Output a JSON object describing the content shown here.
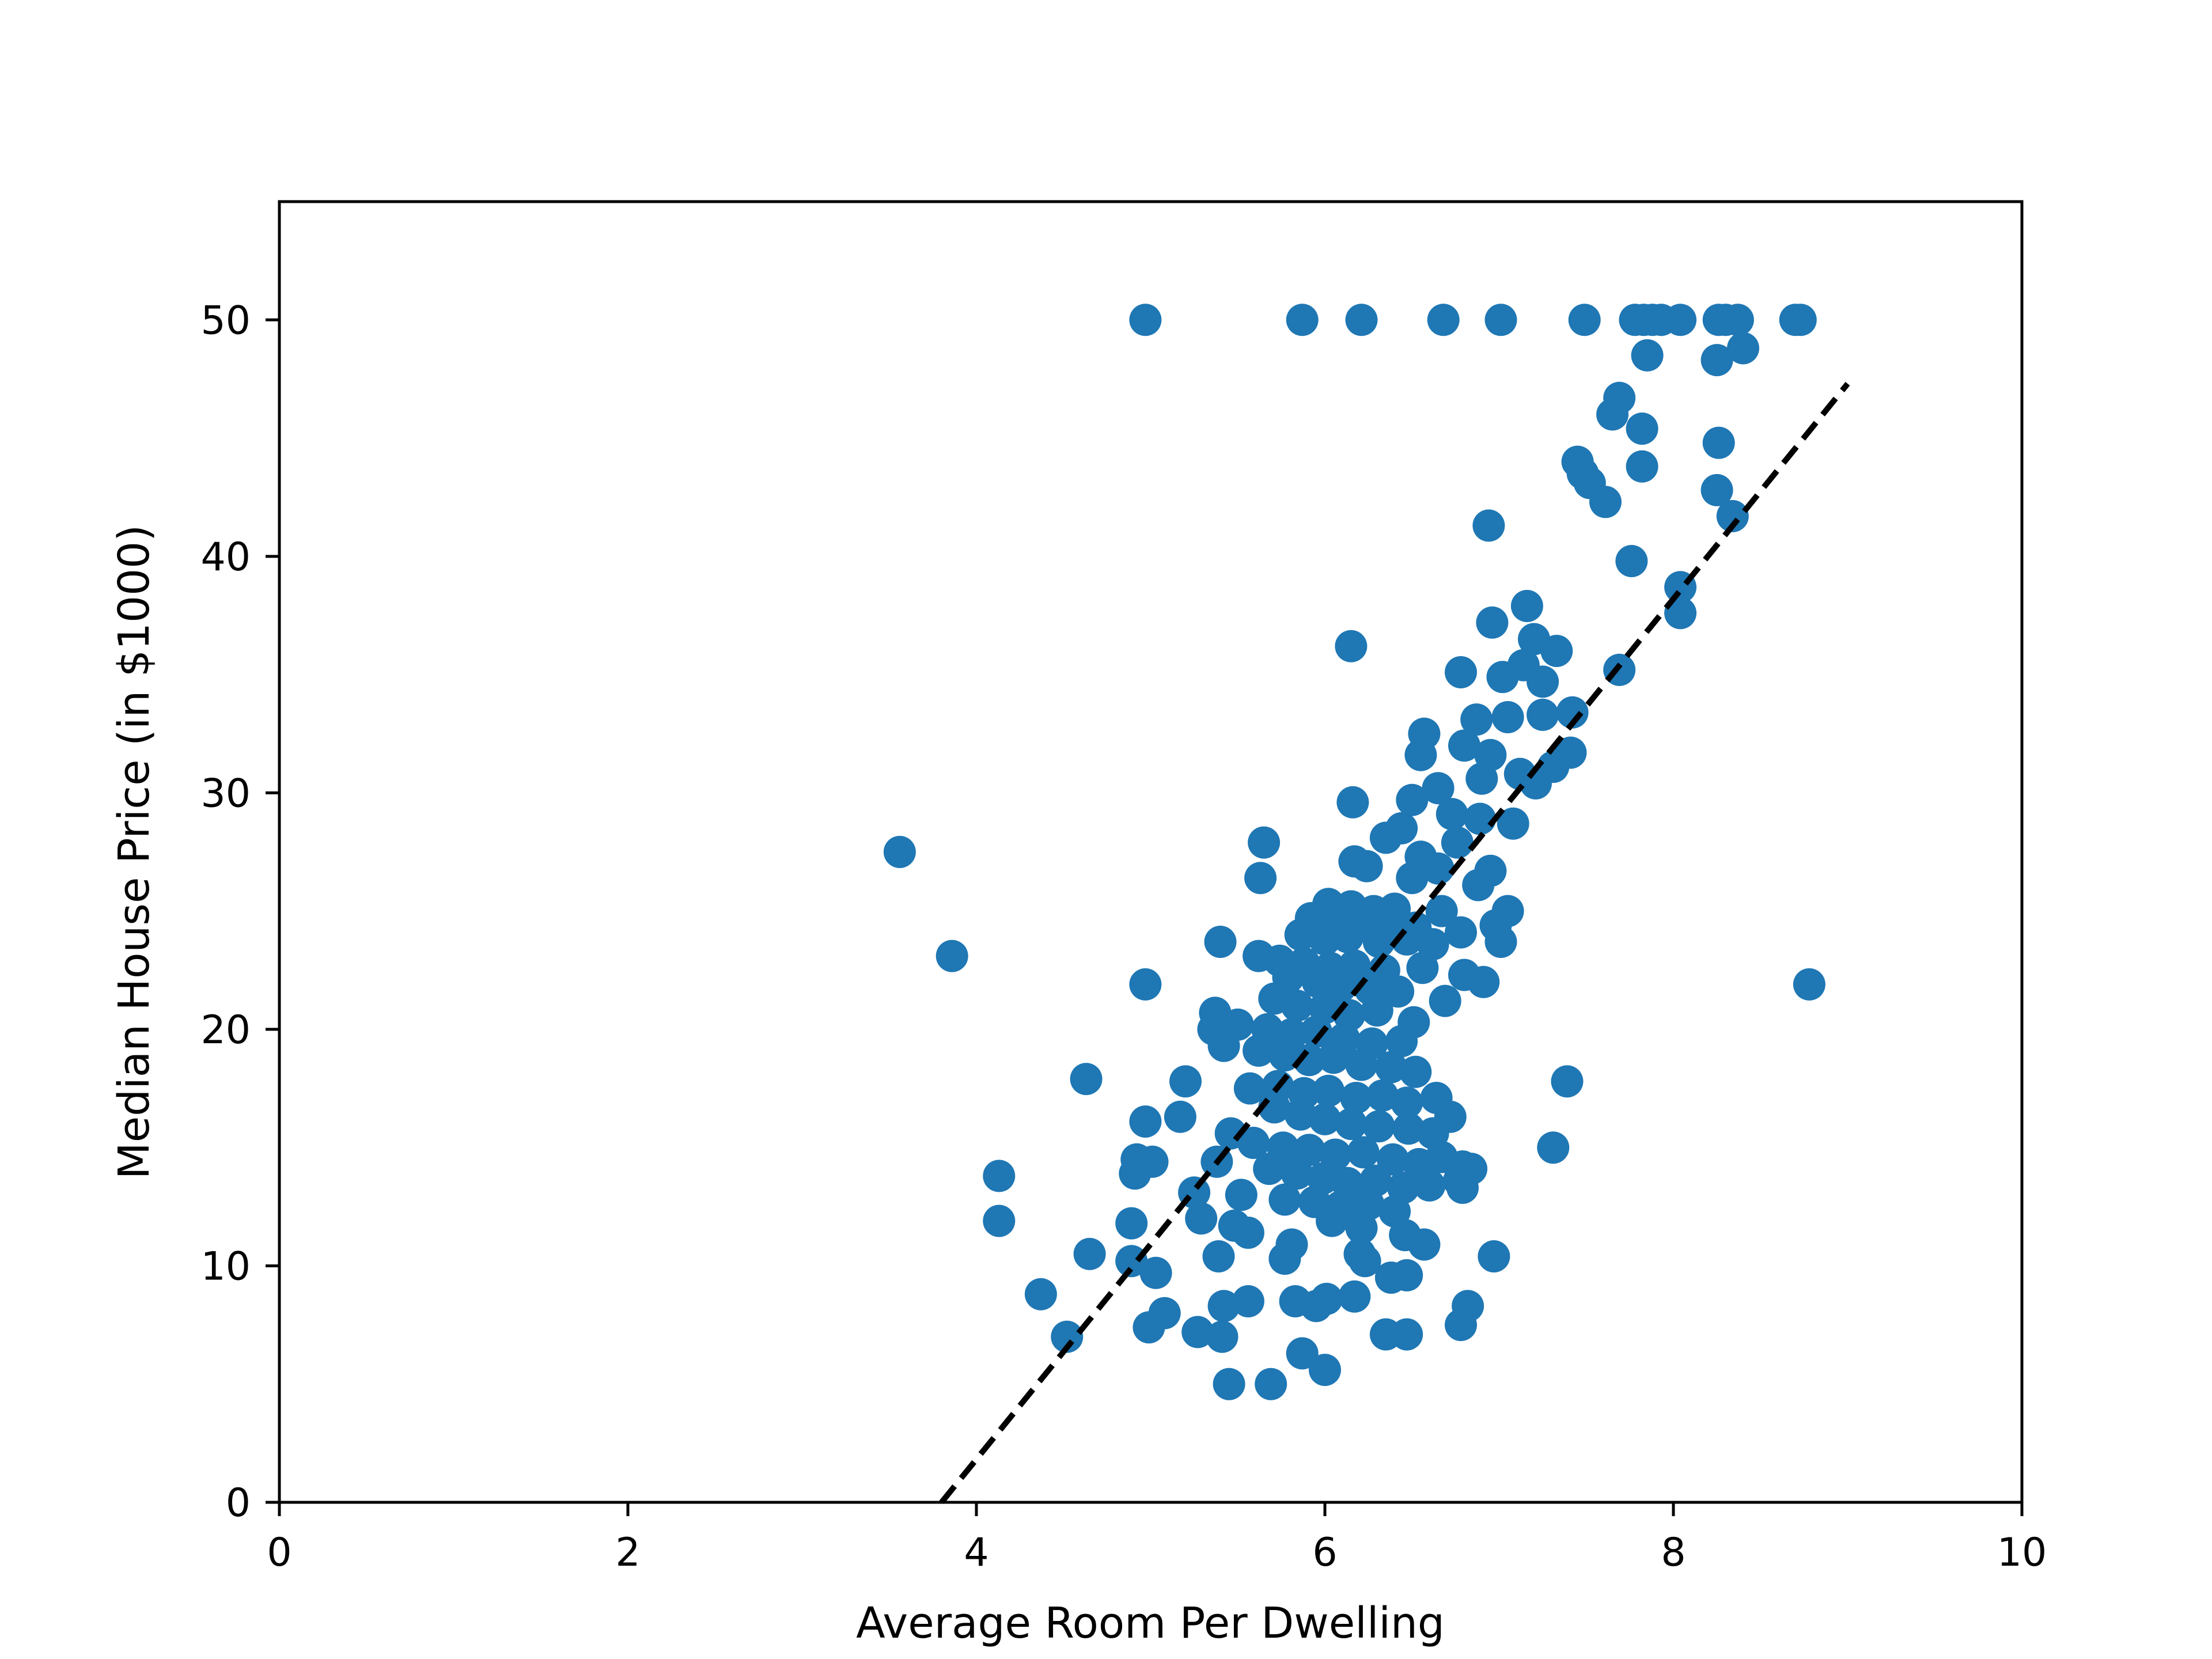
{
  "chart_data": {
    "type": "scatter",
    "title": "",
    "xlabel": "Average Room Per Dwelling",
    "ylabel": "Median House Price (in $1000)",
    "xlim": [
      0,
      10
    ],
    "ylim": [
      0,
      55
    ],
    "xticks": [
      0,
      2,
      4,
      6,
      8,
      10
    ],
    "yticks": [
      0,
      10,
      20,
      30,
      40,
      50
    ],
    "grid": false,
    "legend": "none",
    "marker_color": "#1f77b4",
    "series": [
      {
        "points": [
          [
            4.97,
            50.0
          ],
          [
            5.87,
            50.0
          ],
          [
            6.21,
            50.0
          ],
          [
            6.68,
            50.0
          ],
          [
            7.01,
            50.0
          ],
          [
            7.49,
            50.0
          ],
          [
            7.78,
            50.0
          ],
          [
            7.83,
            50.0
          ],
          [
            7.88,
            50.0
          ],
          [
            7.93,
            50.0
          ],
          [
            8.04,
            50.0
          ],
          [
            8.26,
            50.0
          ],
          [
            8.3,
            50.0
          ],
          [
            8.37,
            50.0
          ],
          [
            8.7,
            50.0
          ],
          [
            8.73,
            50.0
          ],
          [
            7.85,
            48.5
          ],
          [
            8.25,
            48.3
          ],
          [
            8.4,
            48.8
          ],
          [
            7.69,
            46.7
          ],
          [
            7.65,
            46.0
          ],
          [
            7.82,
            45.4
          ],
          [
            8.26,
            44.8
          ],
          [
            7.45,
            44.0
          ],
          [
            7.48,
            43.5
          ],
          [
            7.52,
            43.1
          ],
          [
            7.61,
            42.3
          ],
          [
            7.82,
            43.8
          ],
          [
            8.25,
            42.8
          ],
          [
            8.34,
            41.7
          ],
          [
            6.94,
            41.3
          ],
          [
            7.76,
            39.8
          ],
          [
            8.04,
            38.7
          ],
          [
            8.04,
            37.6
          ],
          [
            7.16,
            37.9
          ],
          [
            6.96,
            37.2
          ],
          [
            7.2,
            36.5
          ],
          [
            6.15,
            36.2
          ],
          [
            7.33,
            36.0
          ],
          [
            7.14,
            35.4
          ],
          [
            6.78,
            35.1
          ],
          [
            7.02,
            34.9
          ],
          [
            7.25,
            34.7
          ],
          [
            7.69,
            35.2
          ],
          [
            7.42,
            33.4
          ],
          [
            7.25,
            33.3
          ],
          [
            7.05,
            33.2
          ],
          [
            6.87,
            33.1
          ],
          [
            6.57,
            32.5
          ],
          [
            6.8,
            32.0
          ],
          [
            6.95,
            31.6
          ],
          [
            7.41,
            31.7
          ],
          [
            6.55,
            31.6
          ],
          [
            7.31,
            31.1
          ],
          [
            7.12,
            30.8
          ],
          [
            6.9,
            30.6
          ],
          [
            6.65,
            30.2
          ],
          [
            7.21,
            30.4
          ],
          [
            6.5,
            29.7
          ],
          [
            6.73,
            29.1
          ],
          [
            6.89,
            28.9
          ],
          [
            7.08,
            28.7
          ],
          [
            6.44,
            28.5
          ],
          [
            6.35,
            28.1
          ],
          [
            6.16,
            29.6
          ],
          [
            6.76,
            27.9
          ],
          [
            6.55,
            27.3
          ],
          [
            6.65,
            26.8
          ],
          [
            6.95,
            26.7
          ],
          [
            6.17,
            27.1
          ],
          [
            6.24,
            26.9
          ],
          [
            6.5,
            26.4
          ],
          [
            6.88,
            26.1
          ],
          [
            5.65,
            27.9
          ],
          [
            5.63,
            26.4
          ],
          [
            3.56,
            27.5
          ],
          [
            3.86,
            23.1
          ],
          [
            6.02,
            25.3
          ],
          [
            6.15,
            25.2
          ],
          [
            6.28,
            25.0
          ],
          [
            6.4,
            25.1
          ],
          [
            6.67,
            25.0
          ],
          [
            7.05,
            25.0
          ],
          [
            5.92,
            24.7
          ],
          [
            6.07,
            24.6
          ],
          [
            6.2,
            24.4
          ],
          [
            6.36,
            24.2
          ],
          [
            6.52,
            24.3
          ],
          [
            6.78,
            24.1
          ],
          [
            6.98,
            24.4
          ],
          [
            5.86,
            24.0
          ],
          [
            6.0,
            23.8
          ],
          [
            6.13,
            23.9
          ],
          [
            6.31,
            23.7
          ],
          [
            6.47,
            23.8
          ],
          [
            6.62,
            23.6
          ],
          [
            7.01,
            23.7
          ],
          [
            5.4,
            23.7
          ],
          [
            5.62,
            23.1
          ],
          [
            5.74,
            22.9
          ],
          [
            5.88,
            22.8
          ],
          [
            6.03,
            22.6
          ],
          [
            6.17,
            22.7
          ],
          [
            6.34,
            22.5
          ],
          [
            6.56,
            22.6
          ],
          [
            6.8,
            22.3
          ],
          [
            6.91,
            22.0
          ],
          [
            4.97,
            21.9
          ],
          [
            8.78,
            21.9
          ],
          [
            5.79,
            22.2
          ],
          [
            5.96,
            22.0
          ],
          [
            6.09,
            21.8
          ],
          [
            6.26,
            21.7
          ],
          [
            6.42,
            21.6
          ],
          [
            6.69,
            21.2
          ],
          [
            5.71,
            21.3
          ],
          [
            5.84,
            21.0
          ],
          [
            6.0,
            20.9
          ],
          [
            6.14,
            20.6
          ],
          [
            6.3,
            20.8
          ],
          [
            6.51,
            20.3
          ],
          [
            5.37,
            20.7
          ],
          [
            5.5,
            20.2
          ],
          [
            5.67,
            20.0
          ],
          [
            5.81,
            19.8
          ],
          [
            5.95,
            19.9
          ],
          [
            6.11,
            19.6
          ],
          [
            6.27,
            19.4
          ],
          [
            6.44,
            19.5
          ],
          [
            5.36,
            20.0
          ],
          [
            5.42,
            19.3
          ],
          [
            5.62,
            19.1
          ],
          [
            5.77,
            18.9
          ],
          [
            5.91,
            18.7
          ],
          [
            6.05,
            18.8
          ],
          [
            6.21,
            18.5
          ],
          [
            6.38,
            18.4
          ],
          [
            6.52,
            18.2
          ],
          [
            4.63,
            17.9
          ],
          [
            5.2,
            17.8
          ],
          [
            5.57,
            17.5
          ],
          [
            5.73,
            17.6
          ],
          [
            5.88,
            17.3
          ],
          [
            6.02,
            17.4
          ],
          [
            6.18,
            17.1
          ],
          [
            6.33,
            17.2
          ],
          [
            6.47,
            16.9
          ],
          [
            6.64,
            17.1
          ],
          [
            7.39,
            17.8
          ],
          [
            4.97,
            16.1
          ],
          [
            5.17,
            16.3
          ],
          [
            5.71,
            16.7
          ],
          [
            5.86,
            16.4
          ],
          [
            6.0,
            16.2
          ],
          [
            6.15,
            16.0
          ],
          [
            6.31,
            15.9
          ],
          [
            6.48,
            15.8
          ],
          [
            6.62,
            15.6
          ],
          [
            6.72,
            16.3
          ],
          [
            5.46,
            15.6
          ],
          [
            5.59,
            15.2
          ],
          [
            5.76,
            15.0
          ],
          [
            5.91,
            14.9
          ],
          [
            6.06,
            14.7
          ],
          [
            6.22,
            14.8
          ],
          [
            6.39,
            14.5
          ],
          [
            6.54,
            14.3
          ],
          [
            6.67,
            14.6
          ],
          [
            6.79,
            14.2
          ],
          [
            7.31,
            15.0
          ],
          [
            4.92,
            14.5
          ],
          [
            5.01,
            14.4
          ],
          [
            5.38,
            14.4
          ],
          [
            5.68,
            14.1
          ],
          [
            5.84,
            13.9
          ],
          [
            5.99,
            13.7
          ],
          [
            6.13,
            13.5
          ],
          [
            6.29,
            13.6
          ],
          [
            6.45,
            13.3
          ],
          [
            6.6,
            13.4
          ],
          [
            6.77,
            13.6
          ],
          [
            6.84,
            14.1
          ],
          [
            4.13,
            13.8
          ],
          [
            4.91,
            13.9
          ],
          [
            5.25,
            13.1
          ],
          [
            5.52,
            13.0
          ],
          [
            5.77,
            12.8
          ],
          [
            5.94,
            12.7
          ],
          [
            6.09,
            12.5
          ],
          [
            6.25,
            12.6
          ],
          [
            6.4,
            12.3
          ],
          [
            6.79,
            13.3
          ],
          [
            4.13,
            11.9
          ],
          [
            4.89,
            11.8
          ],
          [
            5.29,
            12.0
          ],
          [
            5.48,
            11.7
          ],
          [
            5.56,
            11.4
          ],
          [
            6.04,
            11.9
          ],
          [
            6.21,
            11.6
          ],
          [
            6.46,
            11.3
          ],
          [
            6.2,
            10.5
          ],
          [
            5.81,
            10.9
          ],
          [
            6.57,
            10.9
          ],
          [
            4.65,
            10.5
          ],
          [
            4.89,
            10.2
          ],
          [
            5.77,
            10.3
          ],
          [
            5.39,
            10.4
          ],
          [
            6.23,
            10.2
          ],
          [
            6.97,
            10.4
          ],
          [
            5.03,
            9.7
          ],
          [
            6.38,
            9.5
          ],
          [
            6.47,
            9.6
          ],
          [
            4.37,
            8.8
          ],
          [
            5.08,
            8.0
          ],
          [
            5.42,
            8.3
          ],
          [
            5.56,
            8.5
          ],
          [
            5.83,
            8.5
          ],
          [
            5.95,
            8.3
          ],
          [
            6.01,
            8.6
          ],
          [
            6.17,
            8.7
          ],
          [
            6.82,
            8.3
          ],
          [
            4.99,
            7.4
          ],
          [
            5.27,
            7.2
          ],
          [
            5.41,
            7.0
          ],
          [
            6.35,
            7.1
          ],
          [
            6.47,
            7.1
          ],
          [
            6.78,
            7.5
          ],
          [
            4.52,
            7.0
          ],
          [
            5.87,
            6.3
          ],
          [
            6.0,
            5.6
          ],
          [
            5.45,
            5.0
          ],
          [
            5.69,
            5.0
          ]
        ]
      }
    ],
    "fit_line": {
      "style": "dashed",
      "color": "#000000",
      "x": [
        3.8,
        9.0
      ],
      "y": [
        0.0,
        47.3
      ]
    }
  }
}
